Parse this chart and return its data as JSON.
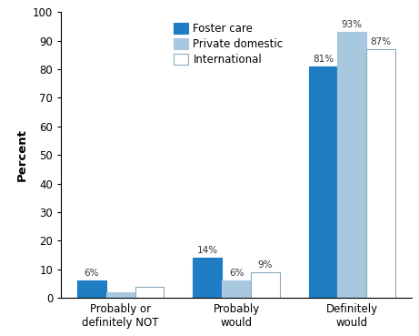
{
  "categories": [
    "Probably or\ndefinitely NOT",
    "Probably\nwould",
    "Definitely\nwould"
  ],
  "series": {
    "Foster care": [
      6,
      14,
      81
    ],
    "Private domestic": [
      2,
      6,
      93
    ],
    "International": [
      4,
      9,
      87
    ]
  },
  "labels": {
    "Foster care": [
      "6%",
      "14%",
      "81%"
    ],
    "Private domestic": [
      "",
      "6%",
      "93%"
    ],
    "International": [
      "",
      "9%",
      "87%"
    ]
  },
  "colors": {
    "Foster care": "#1F7DC4",
    "Private domestic": "#A8C8E0",
    "International": "#FFFFFF"
  },
  "edgecolors": {
    "Foster care": "#1F7DC4",
    "Private domestic": "#A8C8E0",
    "International": "#8AAABB"
  },
  "legend_labels": [
    "Foster care",
    "Private domestic",
    "International"
  ],
  "ylabel": "Percent",
  "ylim": [
    0,
    100
  ],
  "yticks": [
    0,
    10,
    20,
    30,
    40,
    50,
    60,
    70,
    80,
    90,
    100
  ],
  "bar_width": 0.25,
  "x_positions": [
    0,
    1,
    2
  ]
}
